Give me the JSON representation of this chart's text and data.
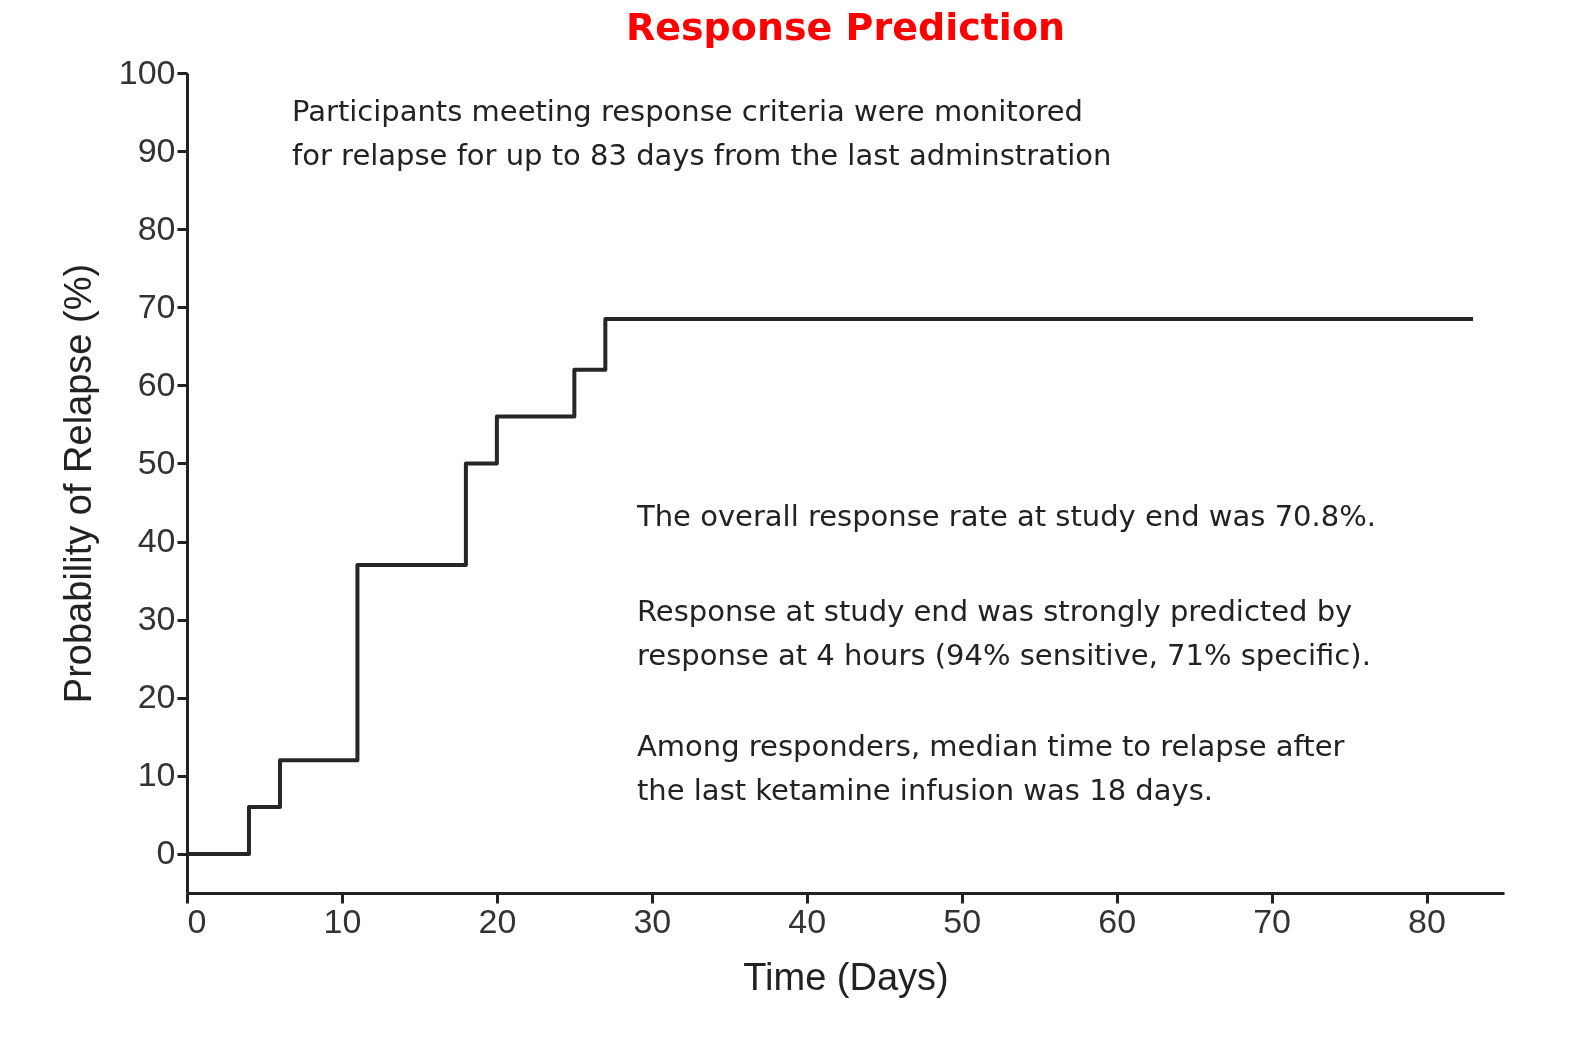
{
  "chart_data": {
    "type": "step",
    "title": "Response Prediction",
    "xlabel": "Time (Days)",
    "ylabel": "Probability of Relapse (%)",
    "x": [
      0,
      4,
      6,
      11,
      18,
      20,
      25,
      27,
      83
    ],
    "values": [
      0,
      6,
      12,
      37,
      50,
      56,
      62,
      68.5,
      68.5
    ],
    "color": "#262626",
    "marker": "none",
    "line_style": "solid",
    "grid": false,
    "xlim": [
      0,
      85
    ],
    "xticks": [
      0,
      10,
      20,
      30,
      40,
      50,
      60,
      70,
      80
    ],
    "ylim": [
      -5,
      100
    ],
    "yticks": [
      0,
      10,
      20,
      30,
      40,
      50,
      60,
      70,
      80,
      90,
      100
    ],
    "annotations": [
      "Participants meeting response criteria were monitored\nfor relapse for up to 83 days from the last adminstration",
      "The overall response rate at study end was 70.8%.",
      "Response at study end was strongly predicted by\nresponse at 4 hours (94% sensitive, 71% specific).",
      "Among responders, median time to relapse after\nthe last ketamine infusion was 18 days."
    ]
  }
}
